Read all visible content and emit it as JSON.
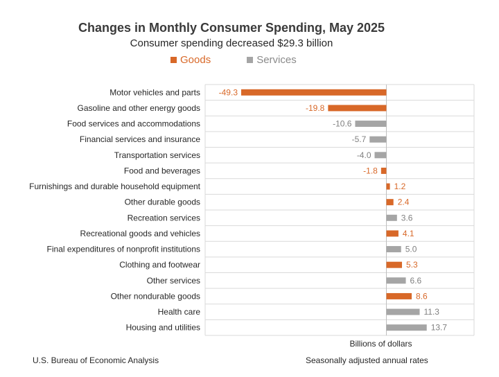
{
  "chart_data": {
    "type": "bar",
    "orientation": "horizontal",
    "title": "Changes in Monthly Consumer Spending, May 2025",
    "subtitle": "Consumer spending decreased $29.3 billion",
    "xlabel": "Billions of dollars",
    "ylabel": "",
    "xlim": [
      -55,
      30
    ],
    "grid": true,
    "legend": [
      {
        "name": "Goods",
        "color": "#d86828"
      },
      {
        "name": "Services",
        "color": "#a5a5a5"
      }
    ],
    "categories": [
      "Motor vehicles and parts",
      "Gasoline and other energy goods",
      "Food services and accommodations",
      "Financial services and insurance",
      "Transportation services",
      "Food and beverages",
      "Furnishings and durable household equipment",
      "Other durable goods",
      "Recreation services",
      "Recreational goods and vehicles",
      "Final expenditures of nonprofit institutions",
      "Clothing and footwear",
      "Other services",
      "Other nondurable goods",
      "Health care",
      "Housing and utilities"
    ],
    "values": [
      -49.3,
      -19.8,
      -10.6,
      -5.7,
      -4.0,
      -1.8,
      1.2,
      2.4,
      3.6,
      4.1,
      5.0,
      5.3,
      6.6,
      8.6,
      11.3,
      13.7
    ],
    "labels": [
      "-49.3",
      "-19.8",
      "-10.6",
      "-5.7",
      "-4.0",
      "-1.8",
      "1.2",
      "2.4",
      "3.6",
      "4.1",
      "5.0",
      "5.3",
      "6.6",
      "8.6",
      "11.3",
      "13.7"
    ],
    "groups": [
      "Goods",
      "Goods",
      "Services",
      "Services",
      "Services",
      "Goods",
      "Goods",
      "Goods",
      "Services",
      "Goods",
      "Services",
      "Goods",
      "Services",
      "Goods",
      "Services",
      "Services"
    ]
  },
  "colors": {
    "goods": "#d86828",
    "services": "#a5a5a5",
    "goods_label": "#d86828",
    "services_label": "#808080",
    "grid": "#d9d9d9"
  },
  "footer": {
    "source": "U.S. Bureau of Economic Analysis",
    "note": "Seasonally adjusted annual rates"
  }
}
